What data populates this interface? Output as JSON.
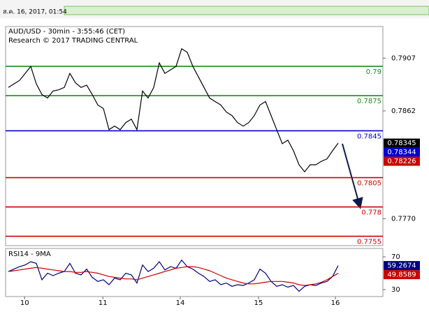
{
  "header": {
    "timestamp": "ส.ค. 16, 2017, 01:54"
  },
  "chart_data": [
    {
      "type": "line",
      "title": "AUD/USD - 30min - 3:55:46 (CET)",
      "subtitle": "Research © 2017 TRADING CENTRAL",
      "x": [
        0,
        1,
        2,
        3,
        4,
        5,
        6,
        7,
        8,
        9,
        10,
        11,
        12,
        13,
        14,
        15,
        16,
        17,
        18,
        19,
        20,
        21,
        22,
        23,
        24,
        25,
        26,
        27,
        28,
        29,
        30,
        31,
        32,
        33,
        34,
        35,
        36,
        37,
        38,
        39,
        40,
        41,
        42,
        43,
        44,
        45,
        46,
        47,
        48,
        49,
        50,
        51,
        52,
        53,
        54,
        55,
        56,
        57,
        58,
        59
      ],
      "series": [
        {
          "color": "#000000",
          "values": [
            0.7882,
            0.7885,
            0.7888,
            0.7894,
            0.79,
            0.7885,
            0.7876,
            0.7873,
            0.7879,
            0.788,
            0.7882,
            0.7894,
            0.7886,
            0.7882,
            0.7884,
            0.7876,
            0.7867,
            0.7864,
            0.7846,
            0.7849,
            0.7846,
            0.7852,
            0.7855,
            0.7846,
            0.7879,
            0.7873,
            0.7882,
            0.7903,
            0.7894,
            0.7897,
            0.79,
            0.7915,
            0.7912,
            0.79,
            0.7891,
            0.7882,
            0.7873,
            0.787,
            0.7867,
            0.7861,
            0.7858,
            0.7852,
            0.7849,
            0.7852,
            0.7858,
            0.7867,
            0.787,
            0.7858,
            0.7846,
            0.7834,
            0.7837,
            0.7828,
            0.7816,
            0.781,
            0.7816,
            0.7816,
            0.7819,
            0.7821,
            0.7828,
            0.78345
          ]
        }
      ],
      "xlim": [
        -0.5,
        67
      ],
      "ylim": [
        0.7747,
        0.7934
      ],
      "yticks": [
        0.7907,
        0.7862,
        {
          "value": 0.777,
          "label": "0.7770"
        }
      ],
      "levels": [
        {
          "value": 0.79,
          "color": "#1e8a1e"
        },
        {
          "value": 0.7875,
          "color": "#1e8a1e"
        },
        {
          "value": 0.7845,
          "color": "#0000cc"
        },
        {
          "value": 0.7805,
          "color": "#cc0000"
        },
        {
          "value": 0.778,
          "color": "#cc0000"
        },
        {
          "value": 0.7755,
          "color": "#cc0000"
        }
      ],
      "price_labels": [
        {
          "value": 0.78345,
          "color": "#000000"
        },
        {
          "value": 0.78344,
          "color": "#0000cc"
        },
        {
          "value": 0.78226,
          "color": "#cc0000"
        }
      ]
    },
    {
      "type": "line",
      "title": "RSI14 - 9MA",
      "x": [
        0,
        1,
        2,
        3,
        4,
        5,
        6,
        7,
        8,
        9,
        10,
        11,
        12,
        13,
        14,
        15,
        16,
        17,
        18,
        19,
        20,
        21,
        22,
        23,
        24,
        25,
        26,
        27,
        28,
        29,
        30,
        31,
        32,
        33,
        34,
        35,
        36,
        37,
        38,
        39,
        40,
        41,
        42,
        43,
        44,
        45,
        46,
        47,
        48,
        49,
        50,
        51,
        52,
        53,
        54,
        55,
        56,
        57,
        58,
        59
      ],
      "series": [
        {
          "color": "#000080",
          "values": [
            52,
            55,
            58,
            60,
            64,
            62,
            42,
            50,
            47,
            50,
            52,
            62,
            50,
            48,
            55,
            45,
            40,
            42,
            36,
            44,
            42,
            50,
            48,
            38,
            60,
            52,
            56,
            64,
            54,
            58,
            56,
            66,
            58,
            55,
            50,
            46,
            40,
            42,
            36,
            38,
            34,
            36,
            35,
            38,
            42,
            55,
            50,
            40,
            34,
            36,
            33,
            35,
            28,
            34,
            36,
            35,
            38,
            40,
            46,
            59.2674
          ]
        },
        {
          "color": "#cc0000",
          "values": [
            52,
            53,
            54,
            55,
            56,
            57,
            56,
            55,
            54,
            53,
            52,
            52,
            51,
            51,
            52,
            51,
            50,
            48,
            46,
            45,
            44,
            43,
            43,
            42,
            44,
            46,
            48,
            50,
            52,
            54,
            56,
            57,
            58,
            58,
            57,
            55,
            53,
            50,
            47,
            44,
            42,
            40,
            38,
            37,
            37,
            38,
            39,
            40,
            40,
            40,
            39,
            38,
            36,
            35,
            36,
            37,
            39,
            42,
            46,
            49.8589
          ]
        }
      ],
      "xlim": [
        -0.5,
        67
      ],
      "xticks": [
        {
          "value": 2.9,
          "label": "10"
        },
        {
          "value": 16.9,
          "label": "11"
        },
        {
          "value": 30.75,
          "label": "14"
        },
        {
          "value": 44.75,
          "label": "15"
        },
        {
          "value": 58.5,
          "label": "16"
        }
      ],
      "ylim": [
        21.5,
        80.2
      ],
      "yticks": [
        70,
        30
      ],
      "price_labels": [
        {
          "value": 59.2674,
          "color": "#000080"
        },
        {
          "value": 49.8589,
          "color": "#cc0000"
        }
      ]
    }
  ]
}
